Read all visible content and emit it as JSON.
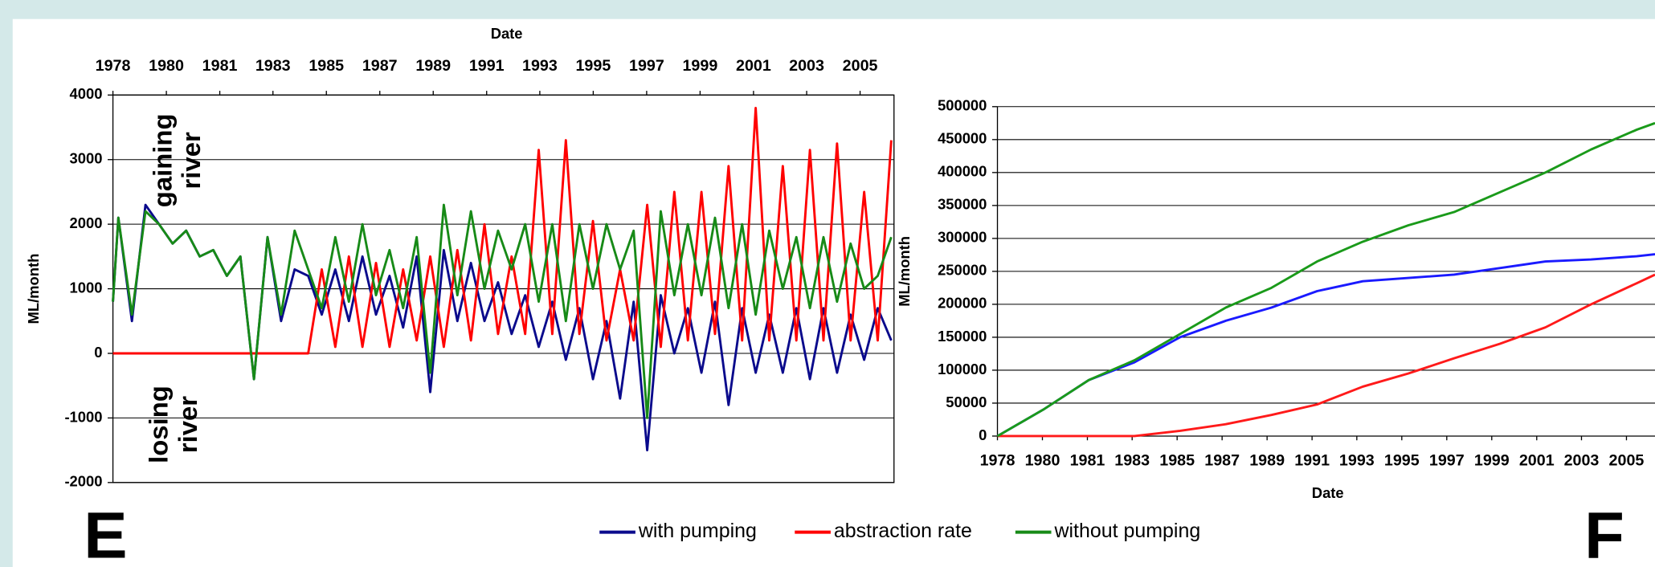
{
  "chart_data": [
    {
      "type": "line",
      "x_label": "Date",
      "y_label": "ML/month",
      "panel_label": "E",
      "annotations": [
        [
          "gaining",
          "river"
        ],
        [
          "losing",
          "river"
        ]
      ],
      "xaxis_position": "top",
      "grid": true,
      "legend": "bottom",
      "xlim": [
        1978,
        2006.8
      ],
      "xticks": [
        1978,
        {
          "value": 1979.97,
          "label": "1980"
        },
        {
          "value": 1981.94,
          "label": "1981"
        },
        {
          "value": 1983.9,
          "label": "1983"
        },
        {
          "value": 1985.87,
          "label": "1985"
        },
        {
          "value": 1987.84,
          "label": "1987"
        },
        {
          "value": 1989.81,
          "label": "1989"
        },
        {
          "value": 1991.78,
          "label": "1991"
        },
        {
          "value": 1993.74,
          "label": "1993"
        },
        {
          "value": 1995.71,
          "label": "1995"
        },
        {
          "value": 1997.68,
          "label": "1997"
        },
        {
          "value": 1999.65,
          "label": "1999"
        },
        {
          "value": 2001.62,
          "label": "2001"
        },
        {
          "value": 2003.58,
          "label": "2003"
        },
        {
          "value": 2005.55,
          "label": "2005"
        }
      ],
      "ylim": [
        -2000,
        4000
      ],
      "yticks": [
        -2000,
        -1000,
        0,
        1000,
        2000,
        3000,
        4000
      ],
      "x": [
        1978,
        1978.2,
        1978.7,
        1979.2,
        1979.7,
        1980.2,
        1980.7,
        1981.2,
        1981.7,
        1982.2,
        1982.7,
        1983.2,
        1983.7,
        1984.2,
        1984.7,
        1985.2,
        1985.7,
        1986.2,
        1986.7,
        1987.2,
        1987.7,
        1988.2,
        1988.7,
        1989.2,
        1989.7,
        1990.2,
        1990.7,
        1991.2,
        1991.7,
        1992.2,
        1992.7,
        1993.2,
        1993.7,
        1994.2,
        1994.7,
        1995.2,
        1995.7,
        1996.2,
        1996.7,
        1997.2,
        1997.7,
        1998.2,
        1998.7,
        1999.2,
        1999.7,
        2000.2,
        2000.7,
        2001.2,
        2001.7,
        2002.2,
        2002.7,
        2003.2,
        2003.7,
        2004.2,
        2004.7,
        2005.2,
        2005.7,
        2006.2,
        2006.7
      ],
      "series": [
        {
          "name": "with pumping",
          "color": "#0a0a8c",
          "values": [
            800,
            2100,
            500,
            2300,
            2000,
            1700,
            1900,
            1500,
            1600,
            1200,
            1500,
            -400,
            1800,
            500,
            1300,
            1200,
            600,
            1300,
            500,
            1500,
            600,
            1200,
            400,
            1500,
            -600,
            1600,
            500,
            1400,
            500,
            1100,
            300,
            900,
            100,
            800,
            -100,
            700,
            -400,
            500,
            -700,
            800,
            -1500,
            900,
            0,
            700,
            -300,
            800,
            -800,
            700,
            -300,
            600,
            -300,
            700,
            -400,
            700,
            -300,
            600,
            -100,
            700,
            200
          ]
        },
        {
          "name": "abstraction rate",
          "color": "#ff0000",
          "values": [
            0,
            0,
            0,
            0,
            0,
            0,
            0,
            0,
            0,
            0,
            0,
            0,
            0,
            0,
            0,
            0,
            1300,
            100,
            1500,
            100,
            1400,
            100,
            1300,
            200,
            1500,
            100,
            1600,
            200,
            2000,
            300,
            1500,
            300,
            3150,
            300,
            3300,
            300,
            2050,
            200,
            1300,
            200,
            2300,
            100,
            2500,
            200,
            2500,
            300,
            2900,
            200,
            3800,
            200,
            2900,
            200,
            3150,
            200,
            3250,
            200,
            2500,
            200,
            3300
          ]
        },
        {
          "name": "without pumping",
          "color": "#178a17",
          "values": [
            800,
            2100,
            600,
            2200,
            2000,
            1700,
            1900,
            1500,
            1600,
            1200,
            1500,
            -400,
            1800,
            600,
            1900,
            1300,
            700,
            1800,
            800,
            2000,
            900,
            1600,
            700,
            1800,
            -300,
            2300,
            900,
            2200,
            1000,
            1900,
            1300,
            2000,
            800,
            2000,
            500,
            2000,
            1000,
            2000,
            1300,
            1900,
            -1000,
            2200,
            900,
            2000,
            900,
            2100,
            700,
            2000,
            600,
            1900,
            1000,
            1800,
            700,
            1800,
            800,
            1700,
            1000,
            1200,
            1800
          ]
        }
      ]
    },
    {
      "type": "line",
      "x_label": "Date",
      "y_label": "ML/month",
      "panel_label": "F",
      "xaxis_position": "bottom",
      "grid": true,
      "xlim": [
        1978,
        2006.8
      ],
      "xticks": [
        1978,
        {
          "value": 1979.97,
          "label": "1980"
        },
        {
          "value": 1981.94,
          "label": "1981"
        },
        {
          "value": 1983.9,
          "label": "1983"
        },
        {
          "value": 1985.87,
          "label": "1985"
        },
        {
          "value": 1987.84,
          "label": "1987"
        },
        {
          "value": 1989.81,
          "label": "1989"
        },
        {
          "value": 1991.78,
          "label": "1991"
        },
        {
          "value": 1993.74,
          "label": "1993"
        },
        {
          "value": 1995.71,
          "label": "1995"
        },
        {
          "value": 1997.68,
          "label": "1997"
        },
        {
          "value": 1999.65,
          "label": "1999"
        },
        {
          "value": 2001.62,
          "label": "2001"
        },
        {
          "value": 2003.58,
          "label": "2003"
        },
        {
          "value": 2005.55,
          "label": "2005"
        }
      ],
      "ylim": [
        0,
        500000
      ],
      "yticks": [
        0,
        50000,
        100000,
        150000,
        200000,
        250000,
        300000,
        350000,
        400000,
        450000,
        500000
      ],
      "x": [
        1978,
        1980,
        1982,
        1984,
        1986,
        1988,
        1990,
        1992,
        1994,
        1996,
        1998,
        2000,
        2002,
        2004,
        2006,
        2006.8
      ],
      "series": [
        {
          "color": "#1a1aff",
          "values": [
            0,
            40000,
            85000,
            112000,
            150000,
            175000,
            195000,
            220000,
            235000,
            240000,
            245000,
            255000,
            265000,
            268000,
            273000,
            276000
          ]
        },
        {
          "color": "#ff1a1a",
          "values": [
            0,
            0,
            0,
            0,
            8000,
            18000,
            32000,
            48000,
            75000,
            95000,
            118000,
            140000,
            165000,
            200000,
            232000,
            245000
          ]
        },
        {
          "color": "#1a9a1a",
          "values": [
            0,
            40000,
            85000,
            115000,
            155000,
            195000,
            225000,
            265000,
            295000,
            320000,
            340000,
            370000,
            400000,
            435000,
            465000,
            475000
          ]
        }
      ]
    }
  ]
}
